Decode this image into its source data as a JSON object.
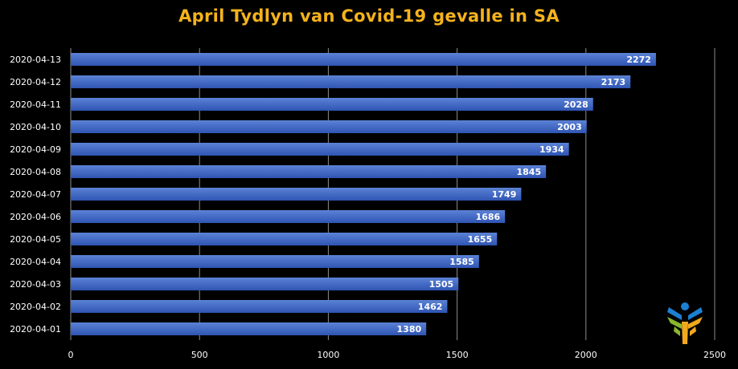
{
  "chart_data": {
    "type": "bar",
    "orientation": "horizontal",
    "title": "April Tydlyn van Covid-19 gevalle in SA",
    "xlabel": "",
    "ylabel": "",
    "categories": [
      "2020-04-13",
      "2020-04-12",
      "2020-04-11",
      "2020-04-10",
      "2020-04-09",
      "2020-04-08",
      "2020-04-07",
      "2020-04-06",
      "2020-04-05",
      "2020-04-04",
      "2020-04-03",
      "2020-04-02",
      "2020-04-01"
    ],
    "values": [
      2272,
      2173,
      2028,
      2003,
      1934,
      1845,
      1749,
      1686,
      1655,
      1585,
      1505,
      1462,
      1380
    ],
    "value_labels": [
      "2272",
      "2173",
      "2028",
      "2003",
      "1934",
      "1845",
      "1749",
      "1686",
      "1655",
      "1585",
      "1505",
      "1462",
      "1380"
    ],
    "xlim": [
      0,
      2500
    ],
    "x_ticks": [
      0,
      500,
      1000,
      1500,
      2000,
      2500
    ],
    "x_tick_labels": [
      "0",
      "500",
      "1000",
      "1500",
      "2000",
      "2500"
    ],
    "grid": "vertical",
    "legend": "none",
    "colors": {
      "background": "#000000",
      "title": "#f5b31b",
      "bar_top": "#5b82d6",
      "bar_bottom": "#2f55b3",
      "gridline": "#8c8c8c",
      "tick_text": "#ffffff",
      "value_text": "#ffffff"
    }
  },
  "logo": {
    "icon": "people-tree-logo-icon"
  }
}
